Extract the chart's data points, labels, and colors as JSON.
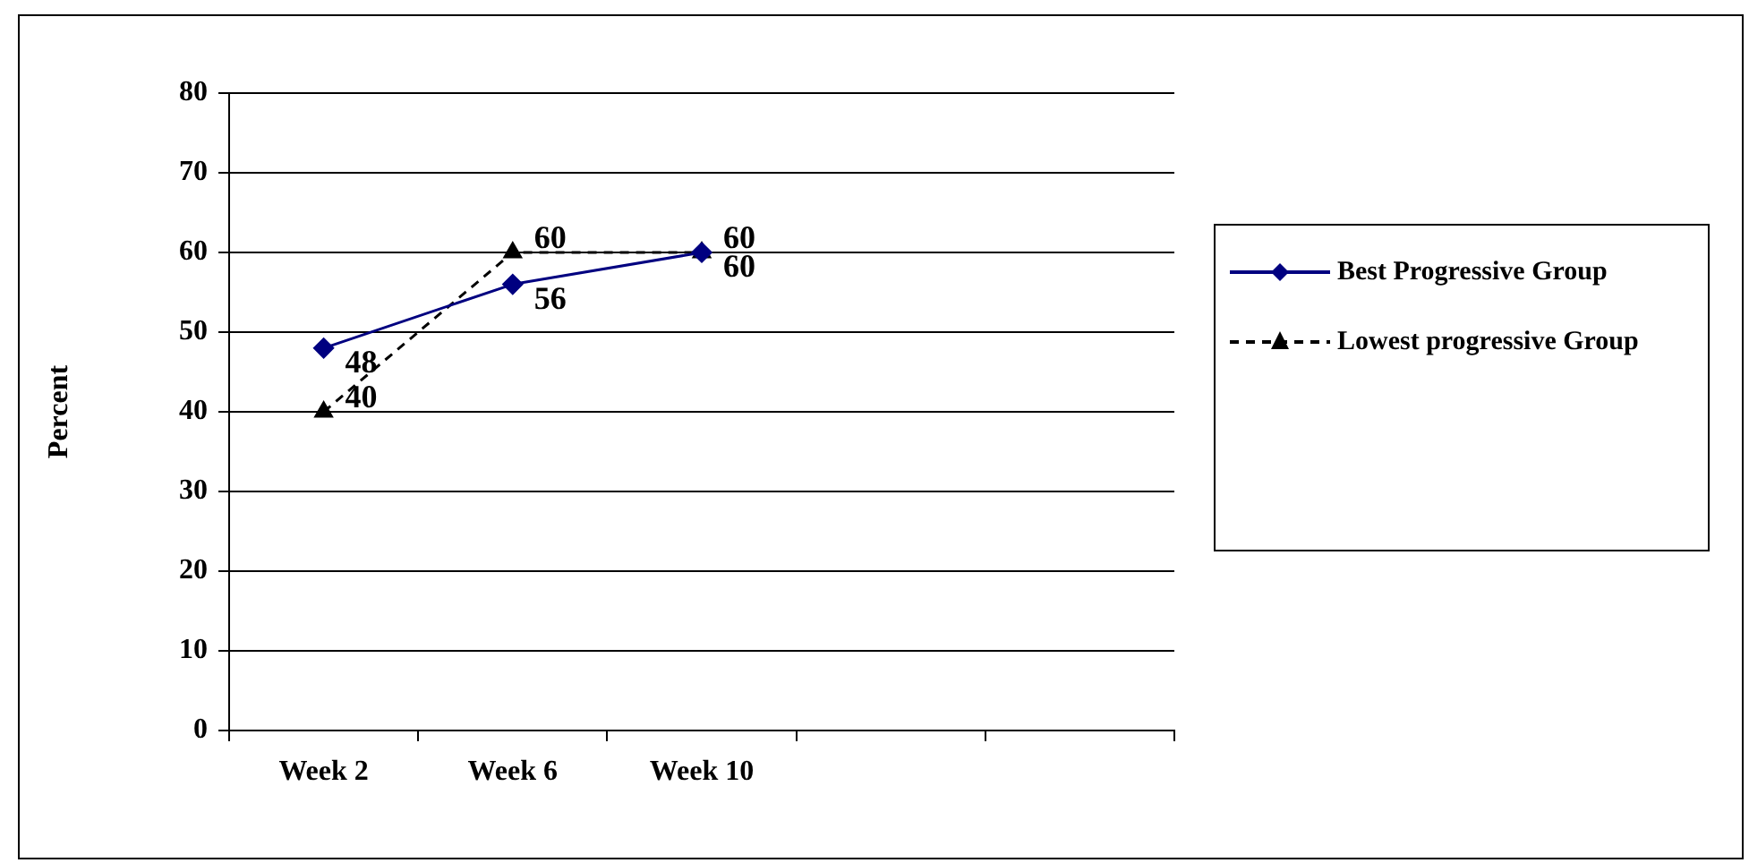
{
  "chart_data": {
    "type": "line",
    "ylabel": "Percent",
    "categories": [
      "Week 2",
      "Week 6",
      "Week 10",
      null,
      null
    ],
    "series": [
      {
        "name": "Best Progressive Group",
        "color": "#000080",
        "values": [
          48,
          56,
          60,
          null,
          null
        ],
        "marker": "diamond",
        "line_style": "solid"
      },
      {
        "name": "Lowest progressive Group",
        "color": "#000000",
        "values": [
          40,
          60,
          60,
          null,
          null
        ],
        "marker": "triangle",
        "line_style": "dashed"
      }
    ],
    "ylim": [
      0,
      80
    ],
    "yticks": [
      0,
      10,
      20,
      30,
      40,
      50,
      60,
      70,
      80
    ],
    "grid": "y",
    "legend": "right",
    "data_labels": true
  }
}
